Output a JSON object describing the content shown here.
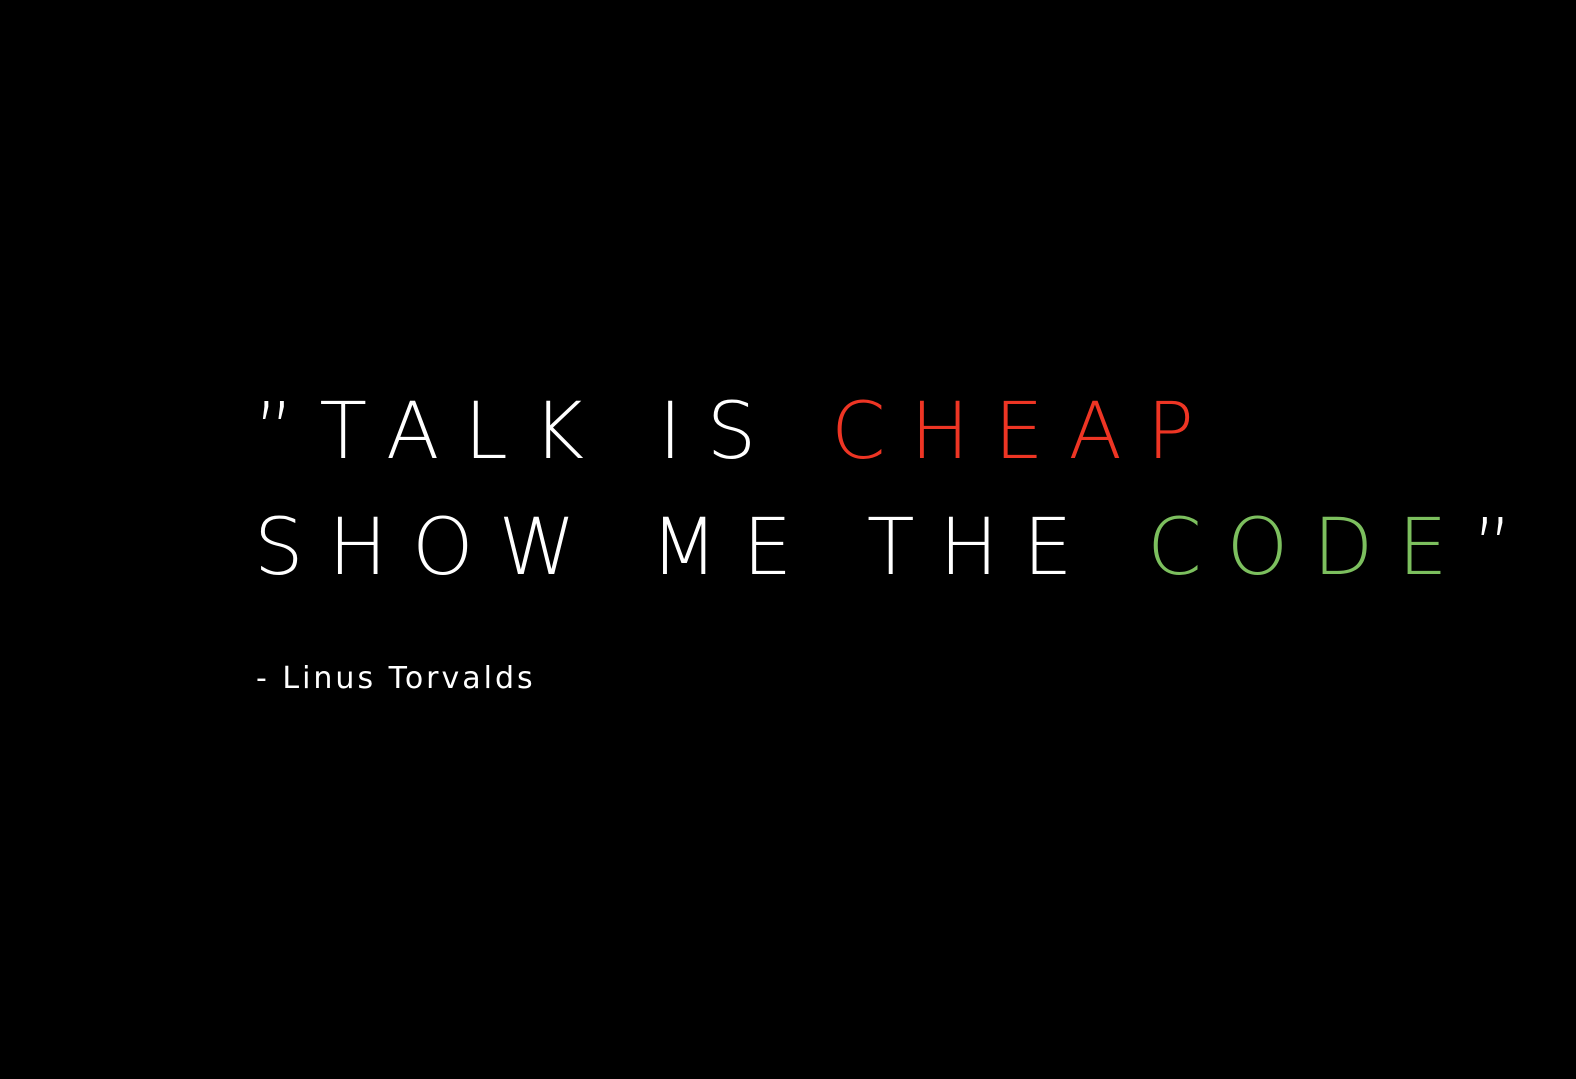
{
  "quote": {
    "line1": {
      "open_quote": "”",
      "plain": "TALK IS ",
      "highlight": "CHEAP"
    },
    "line2": {
      "plain": "SHOW ME THE ",
      "highlight": "CODE",
      "close_quote": "”"
    }
  },
  "attribution": "- Linus Torvalds",
  "colors": {
    "background": "#000000",
    "text": "#ffffff",
    "cheap": "#ee3524",
    "code": "#7cbf5e"
  }
}
